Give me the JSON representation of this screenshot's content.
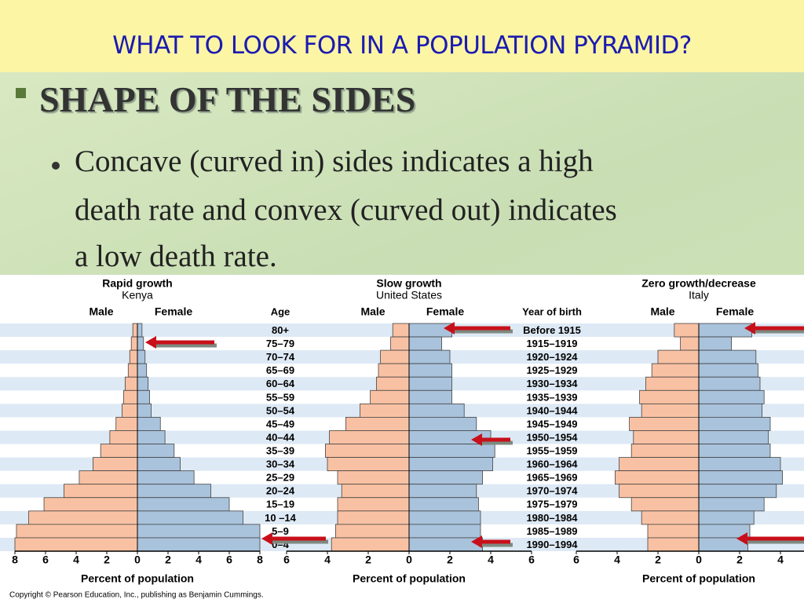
{
  "slide": {
    "title": "WHAT TO LOOK FOR IN A POPULATION PYRAMID?",
    "heading": "SHAPE OF THE SIDES",
    "bullet_lines": [
      "Concave (curved in) sides indicates a high",
      "death rate and convex (curved out) indicates",
      "a low death rate."
    ],
    "copyright": "Copyright © Pearson Education, Inc., publishing as Benjamin Cummings."
  },
  "chart_data": [
    {
      "type": "pyramid",
      "title": "Rapid growth",
      "subtitle": "Kenya",
      "ylabel": "Age",
      "xlabel": "Percent of population",
      "categories": [
        "80+",
        "75–79",
        "70–74",
        "65–69",
        "60–64",
        "55–59",
        "50–54",
        "45–49",
        "40–44",
        "35–39",
        "30–34",
        "25–29",
        "20–24",
        "15–19",
        "10 –14",
        "5–9",
        "0–4"
      ],
      "series": [
        {
          "name": "Male",
          "color": "#f9c1a3",
          "values": [
            0.3,
            0.4,
            0.5,
            0.6,
            0.8,
            0.9,
            1.0,
            1.4,
            1.8,
            2.4,
            2.9,
            3.8,
            4.8,
            6.1,
            7.1,
            7.9,
            8.0
          ]
        },
        {
          "name": "Female",
          "color": "#a9c3dc",
          "values": [
            0.3,
            0.4,
            0.5,
            0.6,
            0.7,
            0.8,
            0.9,
            1.5,
            1.8,
            2.4,
            2.8,
            3.7,
            4.8,
            6.0,
            6.9,
            8.0,
            8.0
          ]
        }
      ],
      "xlim": [
        0,
        8
      ],
      "xticks": [
        0,
        2,
        4,
        6,
        8
      ]
    },
    {
      "type": "pyramid",
      "title": "Slow growth",
      "subtitle": "United States",
      "ylabel": "Year of birth",
      "xlabel": "Percent of population",
      "categories": [
        "Before 1915",
        "1915–1919",
        "1920–1924",
        "1925–1929",
        "1930–1934",
        "1935–1939",
        "1940–1944",
        "1945–1949",
        "1950–1954",
        "1955–1959",
        "1960–1964",
        "1965–1969",
        "1970–1974",
        "1975–1979",
        "1980–1984",
        "1985–1989",
        "1990–1994"
      ],
      "series": [
        {
          "name": "Male",
          "color": "#f9c1a3",
          "values": [
            0.8,
            0.9,
            1.4,
            1.5,
            1.6,
            1.9,
            2.4,
            3.1,
            3.9,
            4.1,
            4.0,
            3.5,
            3.3,
            3.5,
            3.5,
            3.6,
            3.8
          ]
        },
        {
          "name": "Female",
          "color": "#a9c3dc",
          "values": [
            2.1,
            1.6,
            2.0,
            2.1,
            2.1,
            2.1,
            2.7,
            3.3,
            4.0,
            4.2,
            4.1,
            3.6,
            3.3,
            3.4,
            3.5,
            3.5,
            3.6
          ]
        }
      ],
      "xlim": [
        0,
        6
      ],
      "xticks": [
        0,
        2,
        4,
        6
      ]
    },
    {
      "type": "pyramid",
      "title": "Zero growth/decrease",
      "subtitle": "Italy",
      "xlabel": "Percent of population",
      "series": [
        {
          "name": "Male",
          "color": "#f9c1a3",
          "values": [
            1.2,
            0.9,
            2.0,
            2.3,
            2.6,
            2.9,
            2.8,
            3.4,
            3.2,
            3.3,
            3.9,
            4.1,
            3.9,
            3.3,
            2.8,
            2.5,
            2.5
          ]
        },
        {
          "name": "Female",
          "color": "#a9c3dc",
          "values": [
            2.6,
            1.6,
            2.8,
            2.9,
            3.0,
            3.2,
            3.1,
            3.5,
            3.4,
            3.5,
            4.0,
            4.1,
            3.8,
            3.2,
            2.7,
            2.5,
            2.4
          ]
        }
      ],
      "xlim": [
        0,
        6
      ],
      "xticks": [
        0,
        2,
        4,
        6
      ]
    }
  ]
}
